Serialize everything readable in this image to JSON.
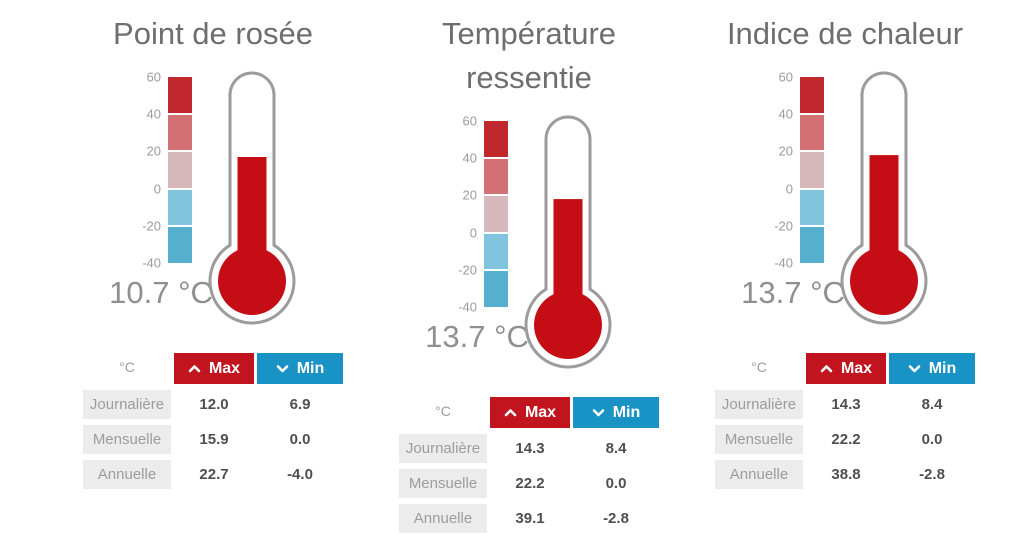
{
  "scale": {
    "ticks": [
      "60",
      "40",
      "20",
      "0",
      "-20",
      "-40"
    ],
    "segment_colors": [
      "#c0282e",
      "#d37073",
      "#d6b7bb",
      "#80c4de",
      "#57afce"
    ]
  },
  "colors": {
    "thermometer_fill": "#c40d14",
    "thermometer_outline": "#9c9c9c",
    "max_header": "#c2141f",
    "min_header": "#1992c5",
    "row_label_bg": "#ececec",
    "title_text": "#6e6e6e",
    "value_text": "#8f8f8f"
  },
  "widgets": [
    {
      "title": "Point de rosée",
      "value_label": "10.7 °C",
      "gauge": {
        "fill_percent": 43
      },
      "table": {
        "unit_header": "°C",
        "max_label": "Max",
        "min_label": "Min",
        "rows": [
          {
            "label": "Journalière",
            "max": "12.0",
            "min": "6.9"
          },
          {
            "label": "Mensuelle",
            "max": "15.9",
            "min": "0.0"
          },
          {
            "label": "Annuelle",
            "max": "22.7",
            "min": "-4.0"
          }
        ]
      }
    },
    {
      "title": "Température\nressentie",
      "value_label": "13.7 °C",
      "gauge": {
        "fill_percent": 42
      },
      "table": {
        "unit_header": "°C",
        "max_label": "Max",
        "min_label": "Min",
        "rows": [
          {
            "label": "Journalière",
            "max": "14.3",
            "min": "8.4"
          },
          {
            "label": "Mensuelle",
            "max": "22.2",
            "min": "0.0"
          },
          {
            "label": "Annuelle",
            "max": "39.1",
            "min": "-2.8"
          }
        ]
      }
    },
    {
      "title": "Indice de chaleur",
      "value_label": "13.7 °C",
      "gauge": {
        "fill_percent": 42
      },
      "table": {
        "unit_header": "°C",
        "max_label": "Max",
        "min_label": "Min",
        "rows": [
          {
            "label": "Journalière",
            "max": "14.3",
            "min": "8.4"
          },
          {
            "label": "Mensuelle",
            "max": "22.2",
            "min": "0.0"
          },
          {
            "label": "Annuelle",
            "max": "38.8",
            "min": "-2.8"
          }
        ]
      }
    }
  ],
  "chart_data": [
    {
      "type": "gauge",
      "title": "Point de rosée",
      "unit": "°C",
      "value": 10.7,
      "scale_ticks": [
        60,
        40,
        20,
        0,
        -20,
        -40
      ],
      "scale_range": [
        -40,
        60
      ],
      "stats": {
        "categories": [
          "Journalière",
          "Mensuelle",
          "Annuelle"
        ],
        "series": [
          {
            "name": "Max",
            "values": [
              12.0,
              15.9,
              22.7
            ]
          },
          {
            "name": "Min",
            "values": [
              6.9,
              0.0,
              -4.0
            ]
          }
        ]
      }
    },
    {
      "type": "gauge",
      "title": "Température ressentie",
      "unit": "°C",
      "value": 13.7,
      "scale_ticks": [
        60,
        40,
        20,
        0,
        -20,
        -40
      ],
      "scale_range": [
        -40,
        60
      ],
      "stats": {
        "categories": [
          "Journalière",
          "Mensuelle",
          "Annuelle"
        ],
        "series": [
          {
            "name": "Max",
            "values": [
              14.3,
              22.2,
              39.1
            ]
          },
          {
            "name": "Min",
            "values": [
              8.4,
              0.0,
              -2.8
            ]
          }
        ]
      }
    },
    {
      "type": "gauge",
      "title": "Indice de chaleur",
      "unit": "°C",
      "value": 13.7,
      "scale_ticks": [
        60,
        40,
        20,
        0,
        -20,
        -40
      ],
      "scale_range": [
        -40,
        60
      ],
      "stats": {
        "categories": [
          "Journalière",
          "Mensuelle",
          "Annuelle"
        ],
        "series": [
          {
            "name": "Max",
            "values": [
              14.3,
              22.2,
              38.8
            ]
          },
          {
            "name": "Min",
            "values": [
              8.4,
              0.0,
              -2.8
            ]
          }
        ]
      }
    }
  ]
}
